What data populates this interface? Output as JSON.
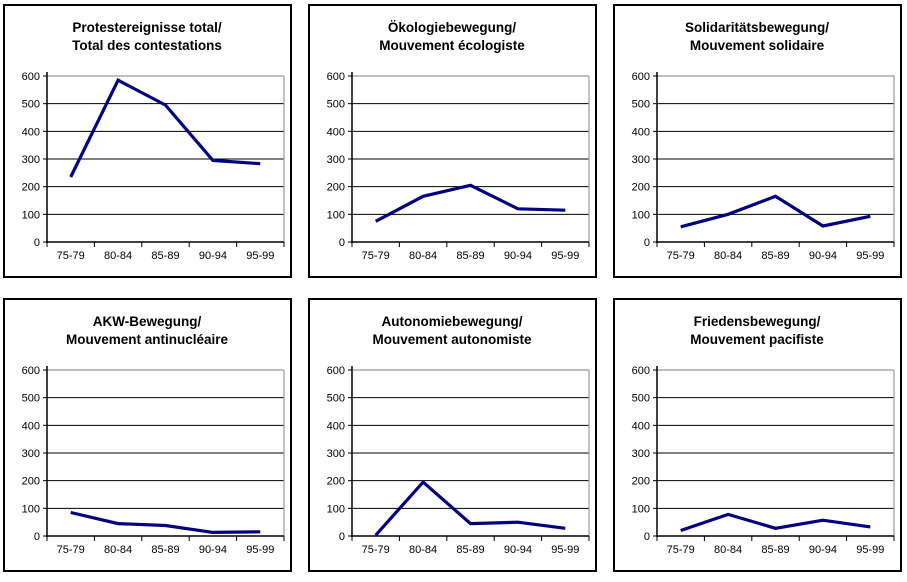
{
  "page": {
    "background_color": "#ffffff",
    "description": "Six small-multiple line charts of protest events in 5-year periods"
  },
  "chart_style": {
    "line_color": "#000080",
    "grid_color": "#000000",
    "axis_color": "#000000",
    "plot_border_color": "#999999",
    "card_border_color": "#000000"
  },
  "chart_data": [
    {
      "type": "line",
      "title_de": "Protestereignisse total/",
      "title_fr": "Total des contestations",
      "categories": [
        "75-79",
        "80-84",
        "85-89",
        "90-94",
        "95-99"
      ],
      "values": [
        235,
        585,
        495,
        295,
        283
      ],
      "ylim": [
        0,
        600
      ],
      "yticks": [
        0,
        100,
        200,
        300,
        400,
        500,
        600
      ],
      "grid": true,
      "legend": "none"
    },
    {
      "type": "line",
      "title_de": "Ökologiebewegung/",
      "title_fr": "Mouvement écologiste",
      "categories": [
        "75-79",
        "80-84",
        "85-89",
        "90-94",
        "95-99"
      ],
      "values": [
        75,
        165,
        205,
        120,
        115
      ],
      "ylim": [
        0,
        600
      ],
      "yticks": [
        0,
        100,
        200,
        300,
        400,
        500,
        600
      ],
      "grid": true,
      "legend": "none"
    },
    {
      "type": "line",
      "title_de": "Solidaritätsbewegung/",
      "title_fr": "Mouvement solidaire",
      "categories": [
        "75-79",
        "80-84",
        "85-89",
        "90-94",
        "95-99"
      ],
      "values": [
        55,
        100,
        165,
        58,
        93
      ],
      "ylim": [
        0,
        600
      ],
      "yticks": [
        0,
        100,
        200,
        300,
        400,
        500,
        600
      ],
      "grid": true,
      "legend": "none"
    },
    {
      "type": "line",
      "title_de": "AKW-Bewegung/",
      "title_fr": "Mouvement antinucléaire",
      "categories": [
        "75-79",
        "80-84",
        "85-89",
        "90-94",
        "95-99"
      ],
      "values": [
        85,
        45,
        38,
        13,
        15
      ],
      "ylim": [
        0,
        600
      ],
      "yticks": [
        0,
        100,
        200,
        300,
        400,
        500,
        600
      ],
      "grid": true,
      "legend": "none"
    },
    {
      "type": "line",
      "title_de": "Autonomiebewegung/",
      "title_fr": "Mouvement autonomiste",
      "categories": [
        "75-79",
        "80-84",
        "85-89",
        "90-94",
        "95-99"
      ],
      "values": [
        3,
        195,
        45,
        50,
        28
      ],
      "ylim": [
        0,
        600
      ],
      "yticks": [
        0,
        100,
        200,
        300,
        400,
        500,
        600
      ],
      "grid": true,
      "legend": "none"
    },
    {
      "type": "line",
      "title_de": "Friedensbewegung/",
      "title_fr": "Mouvement pacifiste",
      "categories": [
        "75-79",
        "80-84",
        "85-89",
        "90-94",
        "95-99"
      ],
      "values": [
        20,
        78,
        28,
        57,
        33
      ],
      "ylim": [
        0,
        600
      ],
      "yticks": [
        0,
        100,
        200,
        300,
        400,
        500,
        600
      ],
      "grid": true,
      "legend": "none"
    }
  ]
}
